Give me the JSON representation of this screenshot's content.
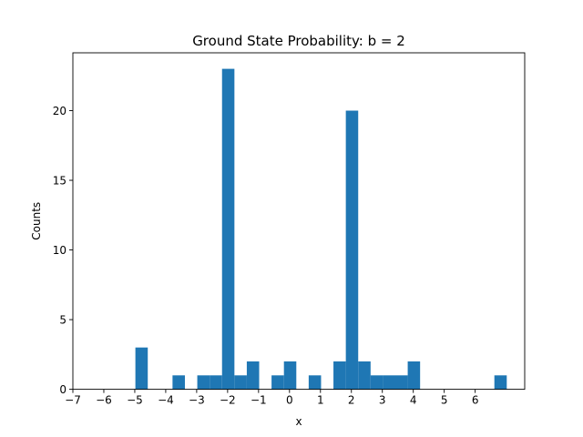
{
  "chart_data": {
    "type": "bar",
    "title": "Ground State Probability: b = 2",
    "xlabel": "x",
    "ylabel": "Counts",
    "xlim": [
      -7,
      7.6
    ],
    "ylim": [
      0,
      24.15
    ],
    "xticks": [
      -7,
      -6,
      -5,
      -4,
      -3,
      -2,
      -1,
      0,
      1,
      2,
      3,
      4,
      5,
      6
    ],
    "xtick_labels": [
      "−7",
      "−6",
      "−5",
      "−4",
      "−3",
      "−2",
      "−1",
      "0",
      "1",
      "2",
      "3",
      "4",
      "5",
      "6"
    ],
    "yticks": [
      0,
      5,
      10,
      15,
      20
    ],
    "ytick_labels": [
      "0",
      "5",
      "10",
      "15",
      "20"
    ],
    "bin_width": 0.4,
    "bins": [
      {
        "x0": -4.98,
        "x1": -4.58,
        "count": 3
      },
      {
        "x0": -3.78,
        "x1": -3.38,
        "count": 1
      },
      {
        "x0": -2.98,
        "x1": -2.58,
        "count": 1
      },
      {
        "x0": -2.58,
        "x1": -2.18,
        "count": 1
      },
      {
        "x0": -2.18,
        "x1": -1.78,
        "count": 23
      },
      {
        "x0": -1.78,
        "x1": -1.38,
        "count": 1
      },
      {
        "x0": -1.38,
        "x1": -0.98,
        "count": 2
      },
      {
        "x0": -0.58,
        "x1": -0.18,
        "count": 1
      },
      {
        "x0": -0.18,
        "x1": 0.22,
        "count": 2
      },
      {
        "x0": 0.62,
        "x1": 1.02,
        "count": 1
      },
      {
        "x0": 1.42,
        "x1": 1.82,
        "count": 2
      },
      {
        "x0": 1.82,
        "x1": 2.22,
        "count": 20
      },
      {
        "x0": 2.22,
        "x1": 2.62,
        "count": 2
      },
      {
        "x0": 2.62,
        "x1": 3.02,
        "count": 1
      },
      {
        "x0": 3.02,
        "x1": 3.42,
        "count": 1
      },
      {
        "x0": 3.42,
        "x1": 3.82,
        "count": 1
      },
      {
        "x0": 3.82,
        "x1": 4.22,
        "count": 2
      },
      {
        "x0": 6.62,
        "x1": 7.02,
        "count": 1
      }
    ],
    "bar_color": "#1f77b4",
    "grid": false,
    "legend": "none"
  }
}
